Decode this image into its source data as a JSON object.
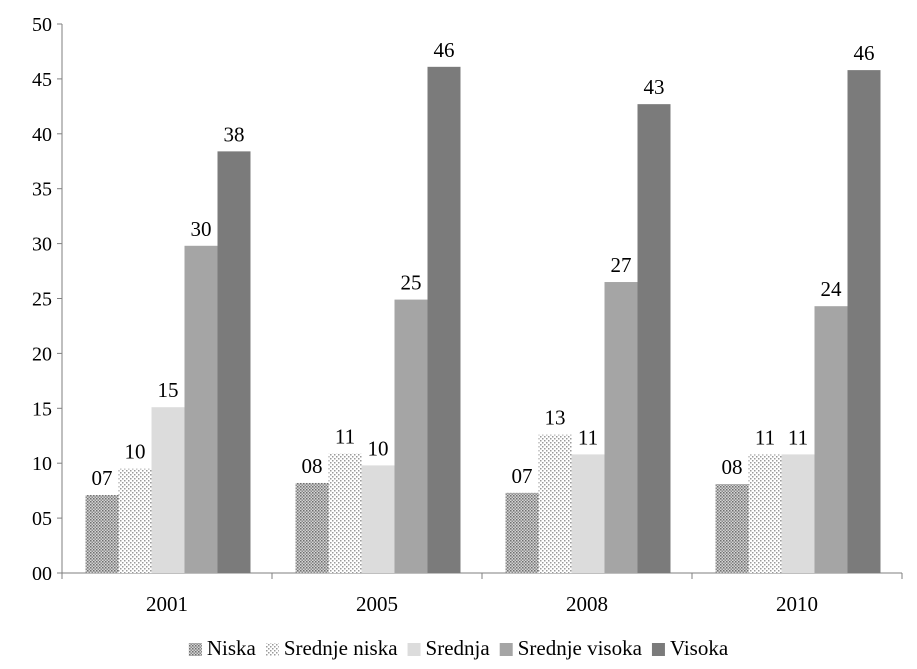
{
  "chart_data": {
    "type": "bar",
    "title": "",
    "xlabel": "",
    "ylabel": "",
    "ylim": [
      0,
      50
    ],
    "yticks": [
      "00",
      "05",
      "10",
      "15",
      "20",
      "25",
      "30",
      "35",
      "40",
      "45",
      "50"
    ],
    "categories": [
      "2001",
      "2005",
      "2008",
      "2010"
    ],
    "grid": false,
    "legend_position": "bottom",
    "series": [
      {
        "name": "Niska",
        "values": [
          7.1,
          8.2,
          7.3,
          8.1
        ],
        "labels": [
          "07",
          "08",
          "07",
          "08"
        ],
        "color": "#a8a8a8",
        "pattern": "dense-dots"
      },
      {
        "name": "Srednje niska",
        "values": [
          9.5,
          10.9,
          12.6,
          10.8
        ],
        "labels": [
          "10",
          "11",
          "13",
          "11"
        ],
        "color": "#c8c8c8",
        "pattern": "sparse-dots"
      },
      {
        "name": "Srednja",
        "values": [
          15.1,
          9.8,
          10.8,
          10.8
        ],
        "labels": [
          "15",
          "10",
          "11",
          "11"
        ],
        "color": "#dcdcdc",
        "pattern": "solid"
      },
      {
        "name": "Srednje visoka",
        "values": [
          29.8,
          24.9,
          26.5,
          24.3
        ],
        "labels": [
          "30",
          "25",
          "27",
          "24"
        ],
        "color": "#a5a5a5",
        "pattern": "solid"
      },
      {
        "name": "Visoka",
        "values": [
          38.4,
          46.1,
          42.7,
          45.8
        ],
        "labels": [
          "38",
          "46",
          "43",
          "46"
        ],
        "color": "#7b7b7b",
        "pattern": "solid"
      }
    ]
  }
}
